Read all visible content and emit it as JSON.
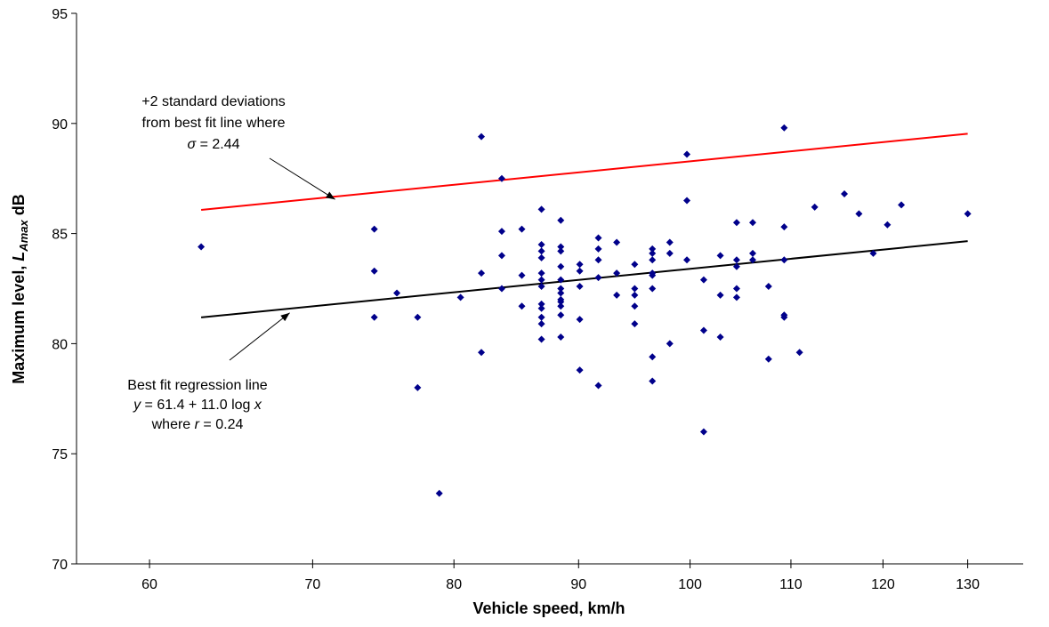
{
  "chart_data": {
    "type": "scatter",
    "x_scale": "log",
    "xlim": [
      56,
      137
    ],
    "ylim": [
      70,
      95
    ],
    "x_ticks": [
      60,
      70,
      80,
      90,
      100,
      110,
      120,
      130
    ],
    "y_ticks": [
      70,
      75,
      80,
      85,
      90,
      95
    ],
    "x_tick_labels": [
      "60",
      "70",
      "80",
      "90",
      "100",
      "110",
      "120",
      "130"
    ],
    "y_tick_labels": [
      "70",
      "75",
      "80",
      "85",
      "90",
      "95"
    ],
    "xlabel": "Vehicle speed, km/h",
    "ylabel": {
      "prefix": "Maximum level, ",
      "symbol": "L",
      "subscript": "Amax",
      "suffix": " dB"
    },
    "grid": false,
    "legend": "none",
    "marker_color": "#00008B",
    "points": [
      [
        63,
        84.4
      ],
      [
        74.2,
        85.2
      ],
      [
        74.2,
        83.3
      ],
      [
        74.2,
        81.2
      ],
      [
        75.8,
        82.3
      ],
      [
        77.3,
        81.2
      ],
      [
        77.3,
        78
      ],
      [
        78.9,
        73.2
      ],
      [
        80.5,
        82.1
      ],
      [
        82.1,
        89.4
      ],
      [
        82.1,
        83.2
      ],
      [
        82.1,
        79.6
      ],
      [
        83.7,
        87.5
      ],
      [
        83.7,
        85.1
      ],
      [
        83.7,
        84
      ],
      [
        83.7,
        82.5
      ],
      [
        85.3,
        85.2
      ],
      [
        85.3,
        83.1
      ],
      [
        85.3,
        81.7
      ],
      [
        86.9,
        86.1
      ],
      [
        86.9,
        84.5
      ],
      [
        86.9,
        84.2
      ],
      [
        86.9,
        83.9
      ],
      [
        86.9,
        83.2
      ],
      [
        86.9,
        82.9
      ],
      [
        86.9,
        82.6
      ],
      [
        86.9,
        81.8
      ],
      [
        86.9,
        81.6
      ],
      [
        86.9,
        81.2
      ],
      [
        86.9,
        80.9
      ],
      [
        86.9,
        80.2
      ],
      [
        88.5,
        85.6
      ],
      [
        88.5,
        84.4
      ],
      [
        88.5,
        84.2
      ],
      [
        88.5,
        83.5
      ],
      [
        88.5,
        82.9
      ],
      [
        88.5,
        82.5
      ],
      [
        88.5,
        82.3
      ],
      [
        88.5,
        82
      ],
      [
        88.5,
        81.9
      ],
      [
        88.5,
        81.7
      ],
      [
        88.5,
        81.3
      ],
      [
        88.5,
        80.3
      ],
      [
        90.1,
        83.6
      ],
      [
        90.1,
        83.3
      ],
      [
        90.1,
        82.6
      ],
      [
        90.1,
        81.1
      ],
      [
        90.1,
        78.8
      ],
      [
        91.7,
        84.8
      ],
      [
        91.7,
        84.3
      ],
      [
        91.7,
        83.8
      ],
      [
        91.7,
        83
      ],
      [
        91.7,
        78.1
      ],
      [
        93.3,
        84.6
      ],
      [
        93.3,
        83.2
      ],
      [
        93.3,
        82.2
      ],
      [
        94.9,
        83.6
      ],
      [
        94.9,
        82.5
      ],
      [
        94.9,
        82.2
      ],
      [
        94.9,
        81.7
      ],
      [
        94.9,
        80.9
      ],
      [
        96.5,
        84.3
      ],
      [
        96.5,
        84.1
      ],
      [
        96.5,
        83.8
      ],
      [
        96.5,
        83.2
      ],
      [
        96.5,
        83.1
      ],
      [
        96.5,
        82.5
      ],
      [
        96.5,
        79.4
      ],
      [
        96.5,
        78.3
      ],
      [
        98.1,
        84.6
      ],
      [
        98.1,
        84.1
      ],
      [
        98.1,
        80
      ],
      [
        99.7,
        88.6
      ],
      [
        99.7,
        86.5
      ],
      [
        99.7,
        83.8
      ],
      [
        101.3,
        82.9
      ],
      [
        101.3,
        80.6
      ],
      [
        101.3,
        76
      ],
      [
        102.9,
        84
      ],
      [
        102.9,
        82.2
      ],
      [
        102.9,
        80.3
      ],
      [
        104.5,
        85.5
      ],
      [
        104.5,
        83.8
      ],
      [
        104.5,
        83.5
      ],
      [
        104.5,
        82.5
      ],
      [
        104.5,
        82.1
      ],
      [
        106.1,
        85.5
      ],
      [
        106.1,
        84.1
      ],
      [
        106.1,
        83.8
      ],
      [
        107.7,
        82.6
      ],
      [
        107.7,
        79.3
      ],
      [
        109.3,
        89.8
      ],
      [
        109.3,
        85.3
      ],
      [
        109.3,
        83.8
      ],
      [
        109.3,
        81.3
      ],
      [
        109.3,
        81.2
      ],
      [
        110.9,
        79.6
      ],
      [
        112.5,
        86.2
      ],
      [
        115.7,
        86.8
      ],
      [
        117.3,
        85.9
      ],
      [
        118.9,
        84.1
      ],
      [
        120.5,
        85.4
      ],
      [
        122.1,
        86.3
      ],
      [
        130,
        85.9
      ]
    ],
    "lines": [
      {
        "kind": "regression",
        "x_range": [
          63,
          130
        ],
        "intercept": 61.4,
        "slope_log10": 11.0,
        "color": "#000000"
      },
      {
        "kind": "plus_two_sd",
        "x_range": [
          63,
          130
        ],
        "intercept": 66.28,
        "slope_log10": 11.0,
        "color": "#FF0000"
      }
    ],
    "annotations": {
      "upper": {
        "lines": [
          "+2 standard deviations",
          "from best fit line where"
        ],
        "sigma_symbol": "σ",
        "sigma_text": " = 2.44",
        "arrow_to": [
          71.5,
          86.55
        ]
      },
      "lower": {
        "line1": "Best fit regression line",
        "eq_y": "y",
        "eq_mid": " = 61.4 + 11.0 log ",
        "eq_x": "x",
        "r_prefix": "where ",
        "r_symbol": "r",
        "r_text": " = 0.24",
        "arrow_to": [
          68.5,
          81.4
        ]
      }
    }
  }
}
